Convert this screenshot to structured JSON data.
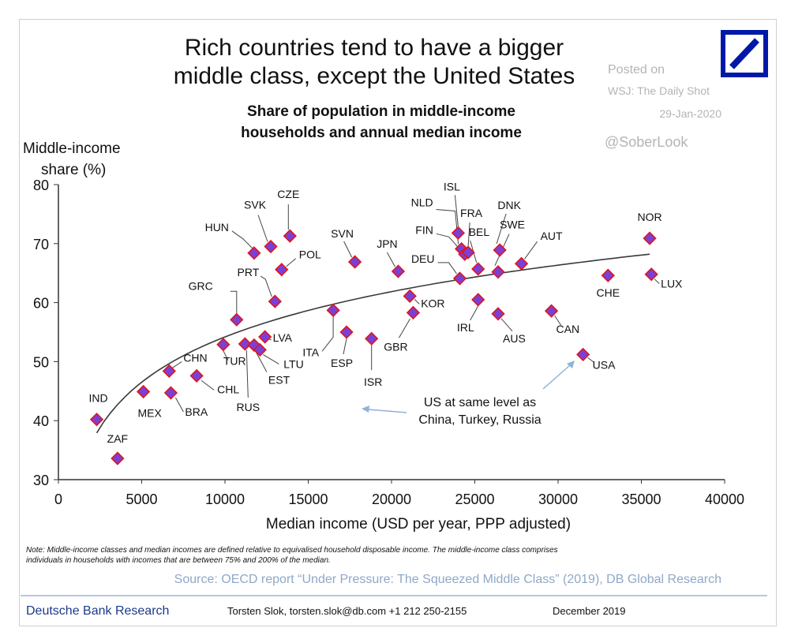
{
  "colors": {
    "marker_fill": "#7b3fd6",
    "marker_stroke": "#e0151c",
    "db_blue": "#0018a8",
    "watermark": "#b4b4b4",
    "source_blue": "#8fa8c8",
    "footer_blue": "#1b3a8a",
    "arrow_blue": "#8fb2d8",
    "curve": "#3a3a3a"
  },
  "header": {
    "title_line1": "Rich countries tend to have a bigger",
    "title_line2": "middle class, except the United States",
    "logo_name": "deutsche-bank-logo"
  },
  "watermark": {
    "posted_on": "Posted on",
    "outlet": "WSJ: The Daily Shot",
    "date": "29-Jan-2020",
    "handle": "@SoberLook"
  },
  "chart_data": {
    "type": "scatter",
    "title": "Share of population in middle-income households and annual median income",
    "title_line1": "Share of population in middle-income",
    "title_line2": "households and annual median income",
    "ylabel_line1": "Middle-income",
    "ylabel_line2": "share (%)",
    "xlabel": "Median income (USD per year, PPP adjusted)",
    "xlim": [
      0,
      40000
    ],
    "ylim": [
      30,
      80
    ],
    "xticks": [
      0,
      5000,
      10000,
      15000,
      20000,
      25000,
      30000,
      35000,
      40000
    ],
    "yticks": [
      30,
      40,
      50,
      60,
      70,
      80
    ],
    "grid": false,
    "points": [
      {
        "label": "IND",
        "x": 2300,
        "y": 40.2
      },
      {
        "label": "ZAF",
        "x": 3550,
        "y": 33.6
      },
      {
        "label": "MEX",
        "x": 5100,
        "y": 44.9
      },
      {
        "label": "BRA",
        "x": 6750,
        "y": 44.7
      },
      {
        "label": "CHN",
        "x": 6650,
        "y": 48.4
      },
      {
        "label": "CHL",
        "x": 8300,
        "y": 47.6
      },
      {
        "label": "TUR",
        "x": 9900,
        "y": 52.9
      },
      {
        "label": "GRC",
        "x": 10700,
        "y": 57.1
      },
      {
        "label": "RUS",
        "x": 11200,
        "y": 53.0
      },
      {
        "label": "HUN",
        "x": 11750,
        "y": 68.4
      },
      {
        "label": "EST",
        "x": 11750,
        "y": 52.8
      },
      {
        "label": "LTU",
        "x": 12100,
        "y": 52.0
      },
      {
        "label": "LVA",
        "x": 12400,
        "y": 54.2
      },
      {
        "label": "SVK",
        "x": 12750,
        "y": 69.5
      },
      {
        "label": "PRT",
        "x": 13000,
        "y": 60.2
      },
      {
        "label": "POL",
        "x": 13400,
        "y": 65.6
      },
      {
        "label": "CZE",
        "x": 13900,
        "y": 71.3
      },
      {
        "label": "ITA",
        "x": 16500,
        "y": 58.7
      },
      {
        "label": "ESP",
        "x": 17300,
        "y": 55.0
      },
      {
        "label": "SVN",
        "x": 17800,
        "y": 66.9
      },
      {
        "label": "ISR",
        "x": 18800,
        "y": 53.9
      },
      {
        "label": "JPN",
        "x": 20400,
        "y": 65.3
      },
      {
        "label": "KOR",
        "x": 21100,
        "y": 61.1
      },
      {
        "label": "GBR",
        "x": 21300,
        "y": 58.3
      },
      {
        "label": "DEU",
        "x": 24100,
        "y": 64.1
      },
      {
        "label": "ISL",
        "x": 24000,
        "y": 71.8
      },
      {
        "label": "NLD",
        "x": 24200,
        "y": 69.1
      },
      {
        "label": "FIN",
        "x": 24400,
        "y": 68.2
      },
      {
        "label": "FRA",
        "x": 24600,
        "y": 68.5
      },
      {
        "label": "BEL",
        "x": 25200,
        "y": 65.7
      },
      {
        "label": "IRL",
        "x": 25200,
        "y": 60.5
      },
      {
        "label": "DNK",
        "x": 26500,
        "y": 68.9
      },
      {
        "label": "SWE",
        "x": 26400,
        "y": 65.2
      },
      {
        "label": "AUS",
        "x": 26400,
        "y": 58.1
      },
      {
        "label": "AUT",
        "x": 27800,
        "y": 66.6
      },
      {
        "label": "CAN",
        "x": 29600,
        "y": 58.6
      },
      {
        "label": "USA",
        "x": 31500,
        "y": 51.2
      },
      {
        "label": "CHE",
        "x": 33000,
        "y": 64.6
      },
      {
        "label": "NOR",
        "x": 35500,
        "y": 70.9
      },
      {
        "label": "LUX",
        "x": 35600,
        "y": 64.8
      }
    ],
    "trendline": {
      "type": "logarithmic",
      "from_x": 2300,
      "to_x": 35500
    },
    "annotation": {
      "line1": "US at same level as",
      "line2": "China, Turkey, Russia"
    }
  },
  "note": {
    "line1": "Note: Middle-income classes and median incomes are defined relative to equivalised household disposable income. The middle-income class comprises",
    "line2": "individuals in households with incomes that are between 75% and 200% of the median."
  },
  "source": "Source: OECD report “Under Pressure: The Squeezed Middle Class” (2019), DB Global Research",
  "footer": {
    "brand": "Deutsche Bank Research",
    "contact": "Torsten Slok, torsten.slok@db.com  +1 212 250-2155",
    "date": "December 2019"
  }
}
